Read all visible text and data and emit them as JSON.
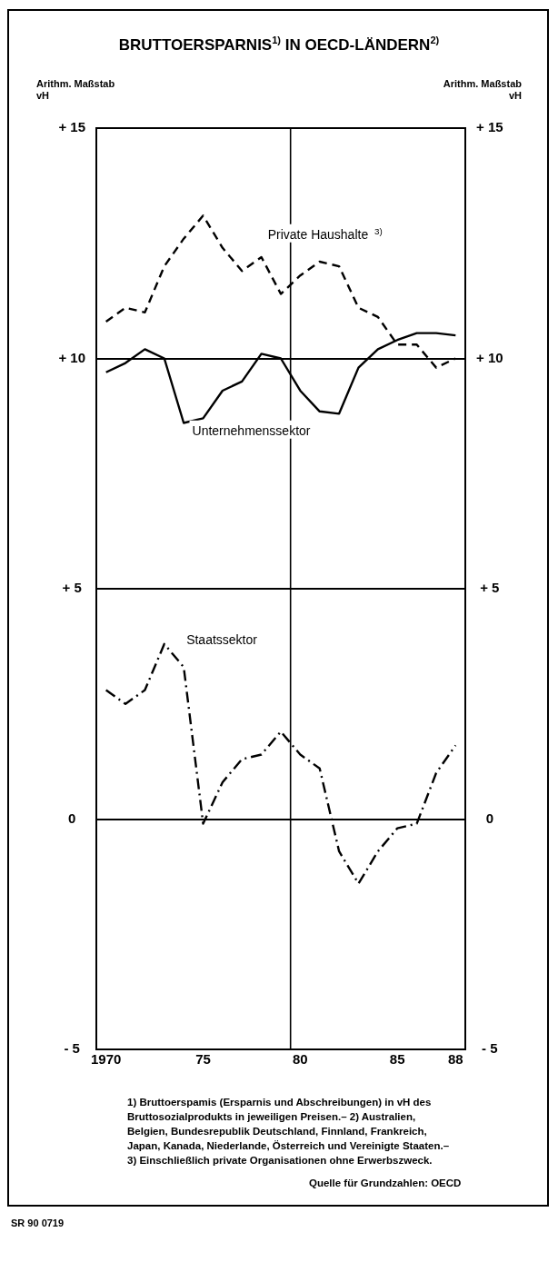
{
  "chart_data": {
    "type": "line",
    "title": "BRUTTOERSPARNIS$^{1)}$ IN OECD-LÄNDERN$^{2)}$",
    "ylabel": "Arithm. Maßstab\nvH",
    "y2label": "Arithm. Maßstab\nvH",
    "x": [
      1970,
      1971,
      1972,
      1973,
      1974,
      1975,
      1976,
      1977,
      1978,
      1979,
      1980,
      1981,
      1982,
      1983,
      1984,
      1985,
      1986,
      1987,
      1988
    ],
    "series": [
      {
        "name": "Private Haushalte $^{3)}$",
        "color": "#000000",
        "line_style": "dashed",
        "values": [
          10.8,
          11.1,
          11.0,
          12.0,
          12.6,
          13.1,
          12.4,
          11.9,
          12.2,
          11.4,
          11.8,
          12.1,
          12.0,
          11.1,
          10.9,
          10.3,
          10.3,
          9.8,
          10.0
        ]
      },
      {
        "name": "Unternehmenssektor",
        "color": "#000000",
        "line_style": "solid",
        "values": [
          9.7,
          9.9,
          10.2,
          10.0,
          8.6,
          8.7,
          9.3,
          9.5,
          10.1,
          10.0,
          9.3,
          8.85,
          8.8,
          9.8,
          10.2,
          10.4,
          10.55,
          10.55,
          10.5
        ]
      },
      {
        "name": "Staatssektor",
        "color": "#000000",
        "line_style": "dashdot",
        "values": [
          2.8,
          2.5,
          2.8,
          3.8,
          3.3,
          -0.1,
          0.8,
          1.3,
          1.4,
          1.9,
          1.4,
          1.1,
          -0.7,
          -1.4,
          -0.7,
          -0.2,
          -0.1,
          1.0,
          1.6
        ]
      }
    ],
    "xlim": [
      1969.5,
      1988.5
    ],
    "xticks": [
      {
        "value": 1970,
        "label": "1970"
      },
      {
        "value": 1975,
        "label": "75"
      },
      {
        "value": 1980,
        "label": "80"
      },
      {
        "value": 1985,
        "label": "85"
      },
      {
        "value": 1988,
        "label": "88"
      }
    ],
    "ylim": [
      -5,
      15
    ],
    "yticks": [
      {
        "value": -5,
        "label": "- 5"
      },
      0,
      {
        "value": 5,
        "label": "+ 5"
      },
      {
        "value": 10,
        "label": "+ 10"
      },
      {
        "value": 15,
        "label": "+ 15"
      }
    ],
    "y2lim": [
      -5,
      15
    ],
    "y2ticks": [
      {
        "value": -5,
        "label": "- 5"
      },
      0,
      {
        "value": 5,
        "label": "+ 5"
      },
      {
        "value": 10,
        "label": "+ 10"
      },
      {
        "value": 15,
        "label": "+ 15"
      }
    ],
    "ref_lines": [
      {
        "axis": "x",
        "value": 1979.5,
        "color": "#000000"
      }
    ],
    "grid": "y",
    "legend": false,
    "marker": "none",
    "annotations": [
      "1) Bruttoerspamis (Ersparnis und Abschreibungen) in vH des Bruttosozialprodukts in jeweiligen Preisen.– 2) Australien, Belgien, Bundesrepublik Deutschland, Finnland, Frankreich, Japan, Kanada, Niederlande, Österreich und Vereinigte Staaten.– 3) Einschließlich private Organisationen ohne Erwerbszweck.",
      "Quelle für Grundzahlen: OECD",
      "SR 90 0719"
    ]
  }
}
